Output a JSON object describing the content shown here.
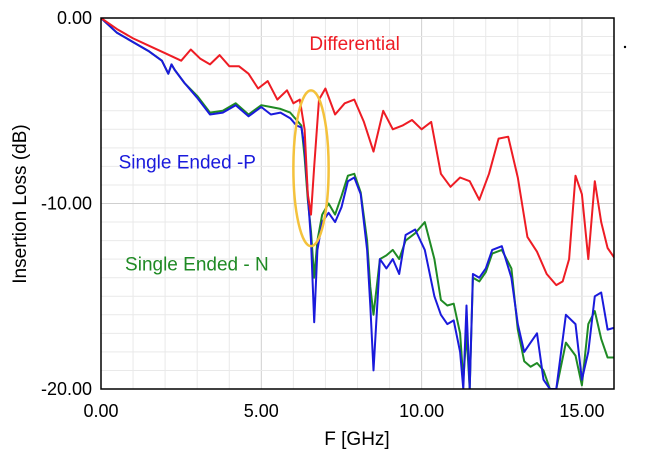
{
  "chart_data": {
    "type": "line",
    "title": "",
    "xlabel": "F [GHz]",
    "ylabel": "Insertion Loss (dB)",
    "xlim": [
      0,
      16
    ],
    "ylim": [
      -20,
      0
    ],
    "x_ticks": [
      "0.00",
      "5.00",
      "10.00",
      "15.00"
    ],
    "y_ticks": [
      "0.00",
      "-10.00",
      "-20.00"
    ],
    "grid": true,
    "series": [
      {
        "name": "Differential",
        "color": "#ee1c24",
        "x": [
          0,
          0.5,
          1.0,
          1.5,
          2.0,
          2.5,
          2.8,
          3.1,
          3.4,
          3.7,
          4.0,
          4.3,
          4.6,
          4.9,
          5.2,
          5.5,
          5.8,
          6.0,
          6.2,
          6.35,
          6.45,
          6.55,
          6.65,
          6.8,
          7.0,
          7.3,
          7.6,
          7.9,
          8.2,
          8.5,
          8.8,
          9.1,
          9.4,
          9.7,
          10.0,
          10.3,
          10.6,
          10.9,
          11.2,
          11.5,
          11.8,
          12.1,
          12.4,
          12.7,
          13.0,
          13.3,
          13.6,
          13.9,
          14.2,
          14.4,
          14.6,
          14.8,
          15.0,
          15.2,
          15.4,
          15.6,
          15.8,
          16.0
        ],
        "y": [
          0.0,
          -0.6,
          -1.1,
          -1.5,
          -1.9,
          -2.3,
          -1.7,
          -2.2,
          -2.5,
          -2.0,
          -2.6,
          -2.6,
          -3.0,
          -3.8,
          -3.4,
          -4.4,
          -3.9,
          -4.6,
          -4.4,
          -6.0,
          -9.5,
          -10.6,
          -8.0,
          -4.4,
          -3.8,
          -5.2,
          -4.6,
          -4.4,
          -5.6,
          -7.2,
          -5.0,
          -6.0,
          -5.8,
          -5.5,
          -6.0,
          -5.6,
          -8.4,
          -9.1,
          -8.6,
          -8.8,
          -9.8,
          -8.4,
          -6.5,
          -6.4,
          -8.6,
          -11.8,
          -12.6,
          -13.8,
          -14.4,
          -14.2,
          -13.0,
          -8.5,
          -9.5,
          -13.0,
          -8.8,
          -11.0,
          -12.4,
          -12.9
        ]
      },
      {
        "name": "Single Ended -P",
        "color": "#1a1adc",
        "x": [
          0,
          0.5,
          1.0,
          1.5,
          1.9,
          2.1,
          2.2,
          2.3,
          2.6,
          3.0,
          3.4,
          3.8,
          4.2,
          4.6,
          5.0,
          5.3,
          5.6,
          5.9,
          6.1,
          6.25,
          6.35,
          6.45,
          6.55,
          6.65,
          6.75,
          6.9,
          7.1,
          7.3,
          7.5,
          7.7,
          7.9,
          8.1,
          8.3,
          8.4,
          8.5,
          8.6,
          8.7,
          8.9,
          9.1,
          9.3,
          9.5,
          9.8,
          10.1,
          10.4,
          10.6,
          10.8,
          11.0,
          11.2,
          11.3,
          11.4,
          11.5,
          11.6,
          11.8,
          12.0,
          12.2,
          12.5,
          12.8,
          13.0,
          13.2,
          13.4,
          13.6,
          13.8,
          14.0,
          14.2,
          14.5,
          14.8,
          15.0,
          15.2,
          15.4,
          15.6,
          15.8,
          16.0
        ],
        "y": [
          0.0,
          -0.8,
          -1.3,
          -1.8,
          -2.3,
          -3.0,
          -2.5,
          -2.8,
          -3.5,
          -4.3,
          -5.2,
          -5.1,
          -4.7,
          -5.3,
          -4.8,
          -5.2,
          -5.1,
          -5.4,
          -5.8,
          -5.9,
          -7.0,
          -9.5,
          -12.0,
          -16.4,
          -12.5,
          -11.0,
          -10.5,
          -11.0,
          -10.2,
          -8.8,
          -8.6,
          -9.5,
          -12.5,
          -15.5,
          -19.0,
          -16.0,
          -13.0,
          -13.5,
          -13.0,
          -13.8,
          -11.7,
          -11.4,
          -12.5,
          -15.0,
          -16.0,
          -16.5,
          -16.3,
          -18.0,
          -20.0,
          -15.5,
          -20.0,
          -13.8,
          -14.0,
          -13.5,
          -12.5,
          -12.3,
          -14.0,
          -16.5,
          -18.0,
          -17.5,
          -17.0,
          -19.5,
          -20.0,
          -20.0,
          -16.0,
          -16.5,
          -19.5,
          -18.0,
          -15.0,
          -14.8,
          -16.8,
          -16.7
        ]
      },
      {
        "name": "Single Ended - N",
        "color": "#1f8a24",
        "x": [
          0,
          0.5,
          1.0,
          1.5,
          1.9,
          2.1,
          2.2,
          2.3,
          2.6,
          3.0,
          3.4,
          3.8,
          4.2,
          4.6,
          5.0,
          5.3,
          5.6,
          5.9,
          6.1,
          6.25,
          6.35,
          6.45,
          6.55,
          6.65,
          6.75,
          6.9,
          7.1,
          7.3,
          7.5,
          7.7,
          7.9,
          8.1,
          8.3,
          8.4,
          8.5,
          8.6,
          8.7,
          8.9,
          9.1,
          9.3,
          9.5,
          9.8,
          10.1,
          10.4,
          10.6,
          10.8,
          11.0,
          11.2,
          11.3,
          11.4,
          11.5,
          11.6,
          11.8,
          12.0,
          12.2,
          12.5,
          12.8,
          13.0,
          13.2,
          13.4,
          13.6,
          13.8,
          14.0,
          14.2,
          14.5,
          14.8,
          15.0,
          15.2,
          15.4,
          15.6,
          15.8,
          16.0
        ],
        "y": [
          0.0,
          -0.8,
          -1.3,
          -1.8,
          -2.3,
          -3.0,
          -2.5,
          -2.8,
          -3.5,
          -4.2,
          -5.1,
          -5.0,
          -4.6,
          -5.2,
          -4.7,
          -4.8,
          -4.9,
          -5.1,
          -5.5,
          -5.8,
          -7.5,
          -9.8,
          -11.5,
          -14.0,
          -12.0,
          -10.6,
          -10.0,
          -10.6,
          -9.6,
          -8.5,
          -8.4,
          -9.4,
          -12.0,
          -14.5,
          -16.0,
          -14.5,
          -13.0,
          -12.8,
          -12.5,
          -13.0,
          -12.0,
          -11.6,
          -11.0,
          -13.0,
          -15.2,
          -15.5,
          -15.4,
          -17.0,
          -19.5,
          -17.0,
          -20.0,
          -14.0,
          -14.2,
          -13.7,
          -12.7,
          -12.5,
          -13.5,
          -16.8,
          -18.5,
          -18.8,
          -18.6,
          -19.0,
          -20.0,
          -20.0,
          -17.5,
          -18.2,
          -19.8,
          -16.5,
          -15.8,
          -17.3,
          -18.3,
          -18.3
        ]
      }
    ],
    "annotations": [
      {
        "text": "Differential",
        "color": "#ee1c24",
        "x": 6.5,
        "y": -1.4
      },
      {
        "text": "Single Ended -P",
        "color": "#1a1adc",
        "x": 0.55,
        "y": -7.8
      },
      {
        "text": "Single Ended - N",
        "color": "#1f8a24",
        "x": 0.75,
        "y": -13.3
      }
    ],
    "highlight": {
      "shape": "ellipse",
      "color": "#f4c23c",
      "cx": 6.55,
      "cy": -8.1,
      "rx": 0.55,
      "ry": 4.2
    }
  }
}
